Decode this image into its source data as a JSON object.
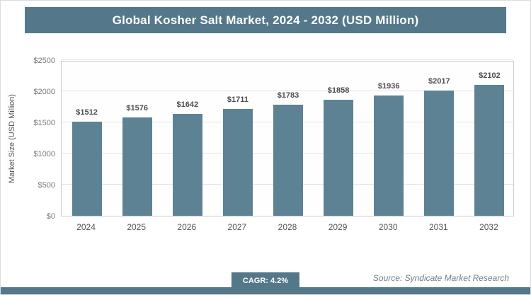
{
  "title": "Global Kosher Salt Market, 2024 - 2032 (USD Million)",
  "chart_data": {
    "type": "bar",
    "title": "Global Kosher Salt Market, 2024 - 2032 (USD Million)",
    "categories": [
      "2024",
      "2025",
      "2026",
      "2027",
      "2028",
      "2029",
      "2030",
      "2031",
      "2032"
    ],
    "values": [
      1512,
      1576,
      1642,
      1711,
      1783,
      1858,
      1936,
      2017,
      2102
    ],
    "bar_labels": [
      "$1512",
      "$1576",
      "$1642",
      "$1711",
      "$1783",
      "$1858",
      "$1936",
      "$2017",
      "$2102"
    ],
    "xlabel": "",
    "ylabel": "Market Size (USD Million)",
    "ylim": [
      0,
      2500
    ],
    "yticks": [
      0,
      500,
      1000,
      1500,
      2000,
      2500
    ],
    "ytick_labels": [
      "$0",
      "$500",
      "$1000",
      "$1500",
      "$2000",
      "$2500"
    ],
    "grid": true,
    "legend": "none",
    "bar_color": "#5d8294"
  },
  "footer": {
    "cagr_label": "CAGR: 4.2%",
    "source": "Source: Syndicate Market Research"
  },
  "colors": {
    "accent": "#54788a",
    "bar": "#5d8294",
    "value_text": "#4d4d4d",
    "tick_text": "#777777"
  }
}
